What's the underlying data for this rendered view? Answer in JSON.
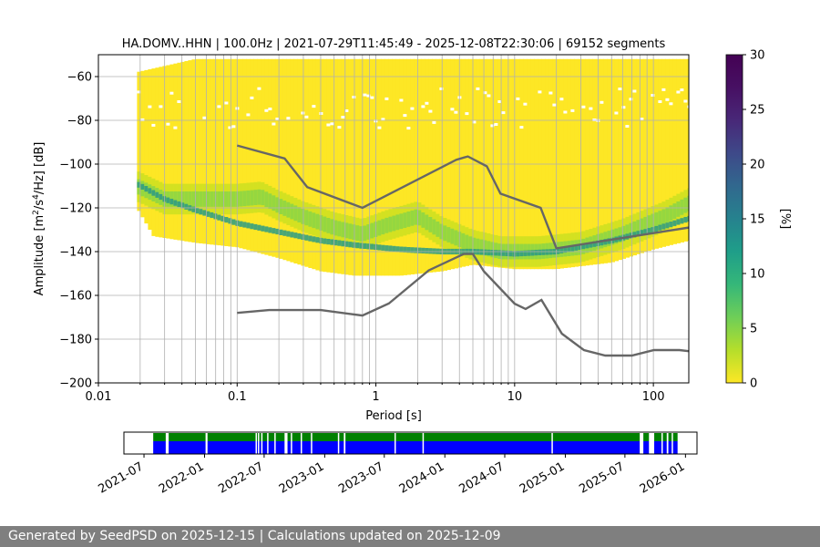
{
  "chart_data": [
    {
      "type": "heatmap",
      "title": "HA.DOMV..HHN | 100.0Hz | 2021-07-29T11:45:49 - 2025-12-08T22:30:06 | 69152 segments",
      "xlabel": "Period [s]",
      "ylabel_parts": [
        "Amplitude [m",
        "2",
        "/s",
        "4",
        "/Hz] [dB]"
      ],
      "x_scale": "log",
      "xlim": [
        0.01,
        180
      ],
      "ylim": [
        -200,
        -50
      ],
      "grid": true,
      "x_ticks": [
        0.01,
        0.1,
        1,
        10,
        100
      ],
      "x_tick_labels": [
        "0.01",
        "0.1",
        "1",
        "10",
        "100"
      ],
      "y_ticks": [
        -200,
        -180,
        -160,
        -140,
        -120,
        -100,
        -80,
        -60
      ],
      "y_tick_labels": [
        "−200",
        "−180",
        "−160",
        "−140",
        "−120",
        "−100",
        "−80",
        "−60"
      ],
      "colormap": "viridis_r",
      "colorbar": {
        "label": "[%]",
        "range": [
          0,
          30
        ],
        "ticks": [
          0,
          5,
          10,
          15,
          20,
          25,
          30
        ],
        "tick_labels": [
          "0",
          "5",
          "10",
          "15",
          "20",
          "25",
          "30"
        ]
      },
      "density": {
        "note_period_range": [
          0.019,
          180
        ],
        "upper_envelope": [
          [
            0.019,
            -58
          ],
          [
            0.05,
            -52
          ],
          [
            1,
            -52
          ],
          [
            10,
            -52
          ],
          [
            180,
            -52
          ]
        ],
        "lower_envelope": [
          [
            0.019,
            -120
          ],
          [
            0.025,
            -133
          ],
          [
            0.05,
            -136
          ],
          [
            0.1,
            -138
          ],
          [
            0.2,
            -143
          ],
          [
            0.4,
            -149
          ],
          [
            0.7,
            -151
          ],
          [
            1.5,
            -151
          ],
          [
            3,
            -149
          ],
          [
            5,
            -146
          ],
          [
            10,
            -148
          ],
          [
            20,
            -148
          ],
          [
            50,
            -145
          ],
          [
            100,
            -139
          ],
          [
            180,
            -135
          ]
        ],
        "mode_line": [
          [
            0.019,
            -109
          ],
          [
            0.03,
            -116
          ],
          [
            0.05,
            -121
          ],
          [
            0.1,
            -127
          ],
          [
            0.2,
            -131
          ],
          [
            0.4,
            -135
          ],
          [
            0.7,
            -137
          ],
          [
            1.5,
            -139
          ],
          [
            3,
            -140
          ],
          [
            5,
            -140
          ],
          [
            10,
            -141
          ],
          [
            20,
            -140
          ],
          [
            50,
            -135
          ],
          [
            100,
            -130
          ],
          [
            180,
            -125
          ]
        ],
        "mean_line": [
          [
            0.019,
            -110
          ],
          [
            0.03,
            -116
          ],
          [
            0.06,
            -116
          ],
          [
            0.1,
            -116
          ],
          [
            0.15,
            -115
          ],
          [
            0.2,
            -119
          ],
          [
            0.3,
            -124
          ],
          [
            0.5,
            -129
          ],
          [
            0.8,
            -132
          ],
          [
            1.2,
            -128
          ],
          [
            2,
            -124
          ],
          [
            3,
            -131
          ],
          [
            5,
            -137
          ],
          [
            8,
            -140
          ],
          [
            15,
            -140
          ],
          [
            30,
            -138
          ],
          [
            60,
            -132
          ],
          [
            120,
            -124
          ],
          [
            180,
            -118
          ]
        ]
      },
      "series": [
        {
          "role": "nhnm",
          "color": "#666666",
          "x": [
            0.1,
            0.22,
            0.32,
            0.8,
            3.8,
            4.6,
            6.3,
            7.9,
            15.4,
            20,
            180
          ],
          "y": [
            -91.5,
            -97.4,
            -110.5,
            -120,
            -98,
            -96.5,
            -101,
            -113.5,
            -120,
            -138.5,
            -129
          ]
        },
        {
          "role": "nlnm",
          "color": "#666666",
          "x": [
            0.1,
            0.17,
            0.4,
            0.8,
            1.24,
            2.4,
            4.3,
            5.0,
            6.0,
            10,
            12,
            15.6,
            21.9,
            31.6,
            45,
            70,
            101,
            154,
            180
          ],
          "y": [
            -168,
            -166.7,
            -166.7,
            -169.2,
            -163.7,
            -148.6,
            -141.1,
            -141.1,
            -149,
            -163.8,
            -166.2,
            -162.1,
            -177.5,
            -185,
            -187.5,
            -187.5,
            -185,
            -185,
            -185.5
          ]
        }
      ]
    },
    {
      "type": "timeline",
      "x_tick_labels": [
        "2021-07",
        "2022-01",
        "2022-07",
        "2023-01",
        "2023-07",
        "2024-01",
        "2024-07",
        "2025-01",
        "2025-07",
        "2026-01"
      ],
      "xlim": [
        "2021-05-01",
        "2026-02-05"
      ],
      "data_span": [
        "2021-07-29",
        "2025-12-08"
      ],
      "colors": {
        "coverage": "#0000ff",
        "processed": "#008000",
        "gap": "#ffffff"
      },
      "gaps": [
        [
          "2021-09-05",
          "2021-09-14"
        ],
        [
          "2022-01-04",
          "2022-01-10"
        ],
        [
          "2022-06-05",
          "2022-06-07"
        ],
        [
          "2022-06-12",
          "2022-06-15"
        ],
        [
          "2022-06-22",
          "2022-06-24"
        ],
        [
          "2022-07-10",
          "2022-07-12"
        ],
        [
          "2022-08-01",
          "2022-08-03"
        ],
        [
          "2022-09-01",
          "2022-09-10"
        ],
        [
          "2022-09-20",
          "2022-09-22"
        ],
        [
          "2022-10-20",
          "2022-10-23"
        ],
        [
          "2022-11-20",
          "2022-11-23"
        ],
        [
          "2023-02-10",
          "2023-02-13"
        ],
        [
          "2023-02-28",
          "2023-03-05"
        ],
        [
          "2023-08-01",
          "2023-08-03"
        ],
        [
          "2023-10-25",
          "2023-10-27"
        ],
        [
          "2024-11-20",
          "2024-11-23"
        ],
        [
          "2025-08-15",
          "2025-08-26"
        ],
        [
          "2025-09-12",
          "2025-09-28"
        ],
        [
          "2025-10-20",
          "2025-10-24"
        ],
        [
          "2025-11-05",
          "2025-11-10"
        ],
        [
          "2025-11-20",
          "2025-11-24"
        ]
      ]
    }
  ],
  "footer": {
    "text": "Generated by SeedPSD on 2025-12-15 | Calculations updated on 2025-12-09"
  }
}
